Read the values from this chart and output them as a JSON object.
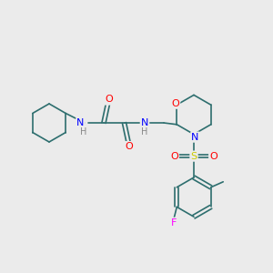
{
  "background_color": "#ebebeb",
  "bond_color": "#2d6e6e",
  "atom_colors": {
    "N": "#0000ff",
    "O": "#ff0000",
    "S": "#cccc00",
    "F": "#ff00ff",
    "H": "#888888",
    "C": "#2d6e6e"
  },
  "font_size": 7,
  "line_width": 1.2
}
